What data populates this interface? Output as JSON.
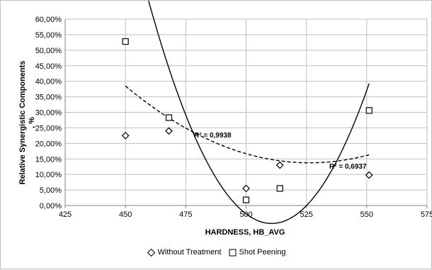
{
  "chart_data": {
    "type": "scatter",
    "title": "",
    "xlabel": "HARDNESS, HB_AVG",
    "ylabel": "Relative Synergistic Components, %",
    "ylabel_lines": [
      "Relative Synergistic Components",
      ", %"
    ],
    "xlim": [
      425,
      575
    ],
    "ylim": [
      0,
      60
    ],
    "x_ticks": [
      "425",
      "450",
      "475",
      "500",
      "525",
      "550",
      "575"
    ],
    "y_ticks": [
      "0,00%",
      "5,00%",
      "10,00%",
      "15,00%",
      "20,00%",
      "25,00%",
      "30,00%",
      "35,00%",
      "40,00%",
      "45,00%",
      "50,00%",
      "55,00%",
      "60,00%"
    ],
    "grid": true,
    "legend_position": "bottom",
    "series": [
      {
        "name": "Without Treatment",
        "marker": "diamond",
        "x": [
          450,
          468,
          500,
          514,
          551
        ],
        "y": [
          22.5,
          24,
          5.5,
          13,
          9.8
        ],
        "trendline": {
          "style": "dashed",
          "r2_label": "R² = 0,6937",
          "coef": [
            1190.3175,
            -4.47096,
            0.0042474
          ]
        }
      },
      {
        "name": "Shot Peening",
        "marker": "square",
        "x": [
          450,
          468,
          500,
          514,
          551
        ],
        "y": [
          52.8,
          28.3,
          1.8,
          5.5,
          30.6
        ],
        "trendline": {
          "style": "solid",
          "r2_label": "R² = 0,9938",
          "coef": [
            7181.5395,
            -28.15347,
            0.02757
          ]
        }
      }
    ],
    "legend_entries": [
      "Without Treatment",
      "Shot Peening"
    ]
  }
}
